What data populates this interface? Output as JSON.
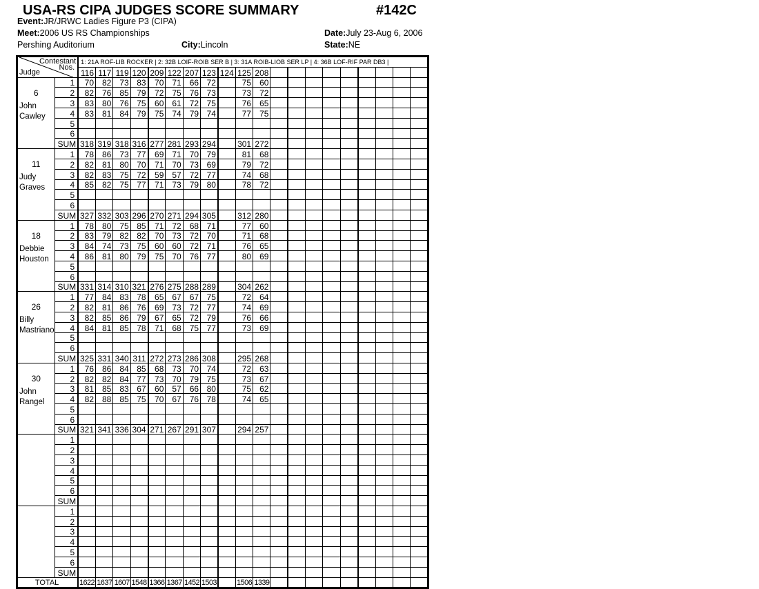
{
  "header": {
    "title": "USA-RS CIPA JUDGES SCORE SUMMARY",
    "number": "#142C",
    "event_label": "Event:",
    "event": "JR/JRWC Ladies Figure P3  (CIPA)",
    "meet_label": "Meet:",
    "meet": "2006 US RS Championships",
    "date_label": "Date:",
    "date": "July 23-Aug 6, 2006",
    "venue": "Pershing Auditorium",
    "city_label": "City:",
    "city": "Lincoln",
    "state_label": "State:",
    "state": "NE"
  },
  "table": {
    "corner_top": "Contestant",
    "corner_nos": "Nos.",
    "corner_judge": "Judge",
    "routines": "1: 21A ROF-LIB ROCKER |  2: 32B LOIF-ROIB SER B |  3: 31A ROIB-LIOB SER LP |  4: 36B LOF-RIF PAR DB3 |",
    "contestants": [
      "116",
      "117",
      "119",
      "120",
      "209",
      "122",
      "207",
      "123",
      "124",
      "125",
      "208",
      "",
      "",
      "",
      "",
      "",
      "",
      "",
      "",
      ""
    ],
    "row_labels": [
      "1",
      "2",
      "3",
      "4",
      "5",
      "6",
      "SUM"
    ],
    "total_label": "TOTAL",
    "judges": [
      {
        "number": "6",
        "first": "John",
        "last": "Cawley",
        "scores": [
          [
            "70",
            "82",
            "73",
            "83",
            "70",
            "71",
            "66",
            "72",
            "",
            "75",
            "60"
          ],
          [
            "82",
            "76",
            "85",
            "79",
            "72",
            "75",
            "76",
            "73",
            "",
            "73",
            "72"
          ],
          [
            "83",
            "80",
            "76",
            "75",
            "60",
            "61",
            "72",
            "75",
            "",
            "76",
            "65"
          ],
          [
            "83",
            "81",
            "84",
            "79",
            "75",
            "74",
            "79",
            "74",
            "",
            "77",
            "75"
          ],
          [],
          []
        ],
        "sum": [
          "318",
          "319",
          "318",
          "316",
          "277",
          "281",
          "293",
          "294",
          "",
          "301",
          "272"
        ]
      },
      {
        "number": "11",
        "first": "Judy",
        "last": "Graves",
        "scores": [
          [
            "78",
            "86",
            "73",
            "77",
            "69",
            "71",
            "70",
            "79",
            "",
            "81",
            "68"
          ],
          [
            "82",
            "81",
            "80",
            "70",
            "71",
            "70",
            "73",
            "69",
            "",
            "79",
            "72"
          ],
          [
            "82",
            "83",
            "75",
            "72",
            "59",
            "57",
            "72",
            "77",
            "",
            "74",
            "68"
          ],
          [
            "85",
            "82",
            "75",
            "77",
            "71",
            "73",
            "79",
            "80",
            "",
            "78",
            "72"
          ],
          [],
          []
        ],
        "sum": [
          "327",
          "332",
          "303",
          "296",
          "270",
          "271",
          "294",
          "305",
          "",
          "312",
          "280"
        ]
      },
      {
        "number": "18",
        "first": "Debbie",
        "last": "Houston",
        "scores": [
          [
            "78",
            "80",
            "75",
            "85",
            "71",
            "72",
            "68",
            "71",
            "",
            "77",
            "60"
          ],
          [
            "83",
            "79",
            "82",
            "82",
            "70",
            "73",
            "72",
            "70",
            "",
            "71",
            "68"
          ],
          [
            "84",
            "74",
            "73",
            "75",
            "60",
            "60",
            "72",
            "71",
            "",
            "76",
            "65"
          ],
          [
            "86",
            "81",
            "80",
            "79",
            "75",
            "70",
            "76",
            "77",
            "",
            "80",
            "69"
          ],
          [],
          []
        ],
        "sum": [
          "331",
          "314",
          "310",
          "321",
          "276",
          "275",
          "288",
          "289",
          "",
          "304",
          "262"
        ]
      },
      {
        "number": "26",
        "first": "Billy",
        "last": "Mastriano",
        "scores": [
          [
            "77",
            "84",
            "83",
            "78",
            "65",
            "67",
            "67",
            "75",
            "",
            "72",
            "64"
          ],
          [
            "82",
            "81",
            "86",
            "76",
            "69",
            "73",
            "72",
            "77",
            "",
            "74",
            "69"
          ],
          [
            "82",
            "85",
            "86",
            "79",
            "67",
            "65",
            "72",
            "79",
            "",
            "76",
            "66"
          ],
          [
            "84",
            "81",
            "85",
            "78",
            "71",
            "68",
            "75",
            "77",
            "",
            "73",
            "69"
          ],
          [],
          []
        ],
        "sum": [
          "325",
          "331",
          "340",
          "311",
          "272",
          "273",
          "286",
          "308",
          "",
          "295",
          "268"
        ]
      },
      {
        "number": "30",
        "first": "John",
        "last": "Rangel",
        "scores": [
          [
            "76",
            "86",
            "84",
            "85",
            "68",
            "73",
            "70",
            "74",
            "",
            "72",
            "63"
          ],
          [
            "82",
            "82",
            "84",
            "77",
            "73",
            "70",
            "79",
            "75",
            "",
            "73",
            "67"
          ],
          [
            "81",
            "85",
            "83",
            "67",
            "60",
            "57",
            "66",
            "80",
            "",
            "75",
            "62"
          ],
          [
            "82",
            "88",
            "85",
            "75",
            "70",
            "67",
            "76",
            "78",
            "",
            "74",
            "65"
          ],
          [],
          []
        ],
        "sum": [
          "321",
          "341",
          "336",
          "304",
          "271",
          "267",
          "291",
          "307",
          "",
          "294",
          "257"
        ]
      },
      {
        "number": "",
        "first": "",
        "last": "",
        "scores": [
          [],
          [],
          [],
          [],
          [],
          []
        ],
        "sum": []
      },
      {
        "number": "",
        "first": "",
        "last": "",
        "scores": [
          [],
          [],
          [],
          [],
          [],
          []
        ],
        "sum": []
      }
    ],
    "totals": [
      "1622",
      "1637",
      "1607",
      "1548",
      "1366",
      "1367",
      "1452",
      "1503",
      "",
      "1506",
      "1339"
    ]
  }
}
